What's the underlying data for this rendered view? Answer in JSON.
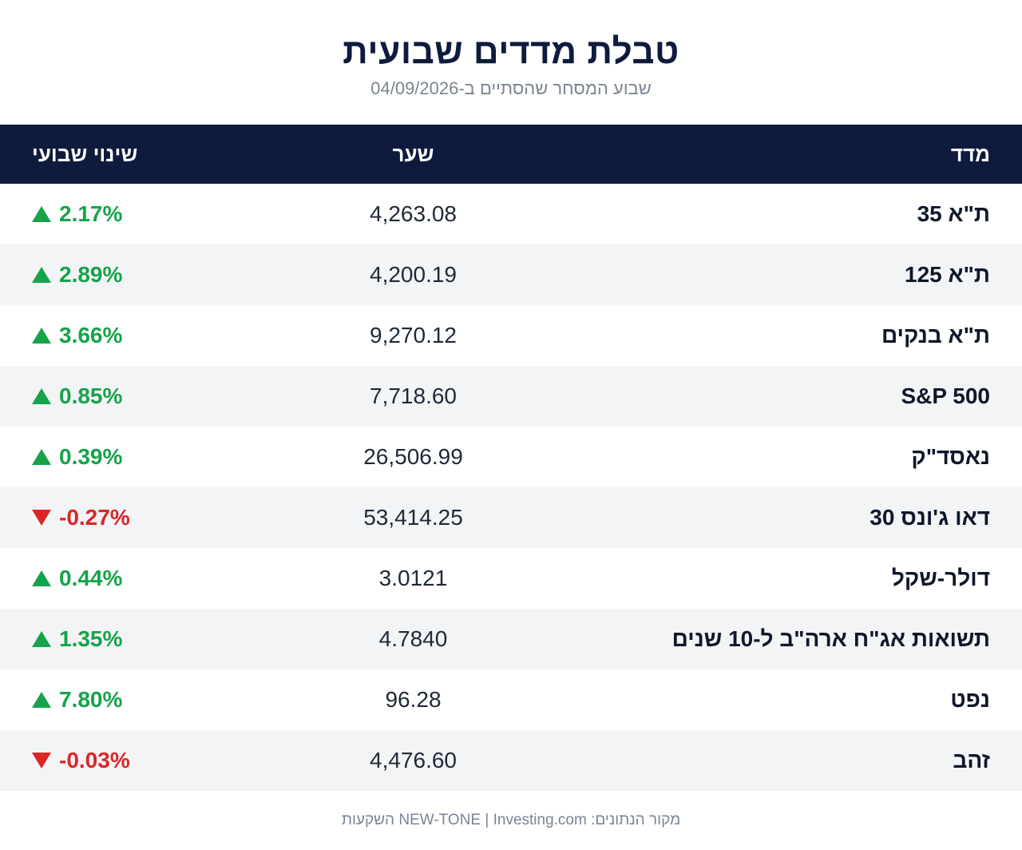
{
  "header": {
    "title": "טבלת מדדים שבועית",
    "subtitle": "שבוע המסחר שהסתיים ב-04/09/2026"
  },
  "table": {
    "columns": {
      "name": "מדד",
      "price": "שער",
      "change": "שינוי שבועי"
    },
    "rows": [
      {
        "name": "ת\"א 35",
        "price": "4,263.08",
        "change": "2.17%",
        "direction": "up"
      },
      {
        "name": "ת\"א 125",
        "price": "4,200.19",
        "change": "2.89%",
        "direction": "up"
      },
      {
        "name": "ת\"א בנקים",
        "price": "9,270.12",
        "change": "3.66%",
        "direction": "up"
      },
      {
        "name": "S&P 500",
        "price": "7,718.60",
        "change": "0.85%",
        "direction": "up"
      },
      {
        "name": "נאסד\"ק",
        "price": "26,506.99",
        "change": "0.39%",
        "direction": "up"
      },
      {
        "name": "דאו ג'ונס 30",
        "price": "53,414.25",
        "change": "-0.27%",
        "direction": "down"
      },
      {
        "name": "דולר-שקל",
        "price": "3.0121",
        "change": "0.44%",
        "direction": "up"
      },
      {
        "name": "תשואות אג\"ח ארה\"ב ל-10 שנים",
        "price": "4.7840",
        "change": "1.35%",
        "direction": "up"
      },
      {
        "name": "נפט",
        "price": "96.28",
        "change": "7.80%",
        "direction": "up"
      },
      {
        "name": "זהב",
        "price": "4,476.60",
        "change": "-0.03%",
        "direction": "down"
      }
    ]
  },
  "footer": {
    "source": "מקור הנתונים: NEW-TONE | Investing.com השקעות"
  },
  "colors": {
    "header_bg": "#0f1b3d",
    "positive": "#16a34a",
    "negative": "#dc2626"
  }
}
